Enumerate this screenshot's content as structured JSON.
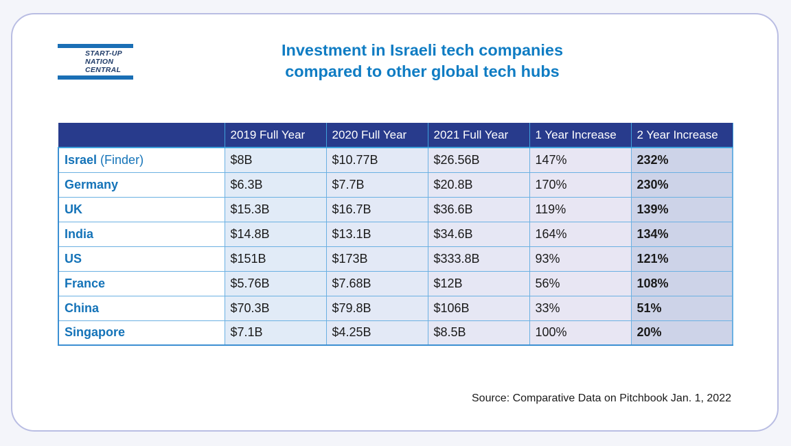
{
  "logo": {
    "line1": "START-UP",
    "line2": "NATION",
    "line3": "CENTRAL"
  },
  "title": {
    "line1": "Investment in Israeli tech companies",
    "line2": "compared to other global tech hubs"
  },
  "chart_data": {
    "type": "table",
    "columns": [
      "2019 Full Year",
      "2020 Full Year",
      "2021 Full Year",
      "1 Year Increase",
      "2 Year Increase"
    ],
    "rows": [
      {
        "country": "Israel",
        "suffix": " (Finder)",
        "values": [
          "$8B",
          "$10.77B",
          "$26.56B",
          "147%",
          "232%"
        ]
      },
      {
        "country": "Germany",
        "suffix": "",
        "values": [
          "$6.3B",
          "$7.7B",
          "$20.8B",
          "170%",
          "230%"
        ]
      },
      {
        "country": "UK",
        "suffix": "",
        "values": [
          "$15.3B",
          "$16.7B",
          "$36.6B",
          "119%",
          "139%"
        ]
      },
      {
        "country": "India",
        "suffix": "",
        "values": [
          "$14.8B",
          "$13.1B",
          "$34.6B",
          "164%",
          "134%"
        ]
      },
      {
        "country": "US",
        "suffix": "",
        "values": [
          "$151B",
          "$173B",
          "$333.8B",
          "93%",
          "121%"
        ]
      },
      {
        "country": "France",
        "suffix": "",
        "values": [
          "$5.76B",
          "$7.68B",
          "$12B",
          "56%",
          "108%"
        ]
      },
      {
        "country": "China",
        "suffix": "",
        "values": [
          "$70.3B",
          "$79.8B",
          "$106B",
          "33%",
          "51%"
        ]
      },
      {
        "country": "Singapore",
        "suffix": "",
        "values": [
          "$7.1B",
          "$4.25B",
          "$8.5B",
          "100%",
          "20%"
        ]
      }
    ]
  },
  "source": "Source: Comparative Data on Pitchbook Jan. 1, 2022",
  "colors": {
    "header_bg": "#283b8c",
    "title": "#0f7cc3",
    "country_text": "#1473b8",
    "highlight_col": "#cdd3e8"
  }
}
